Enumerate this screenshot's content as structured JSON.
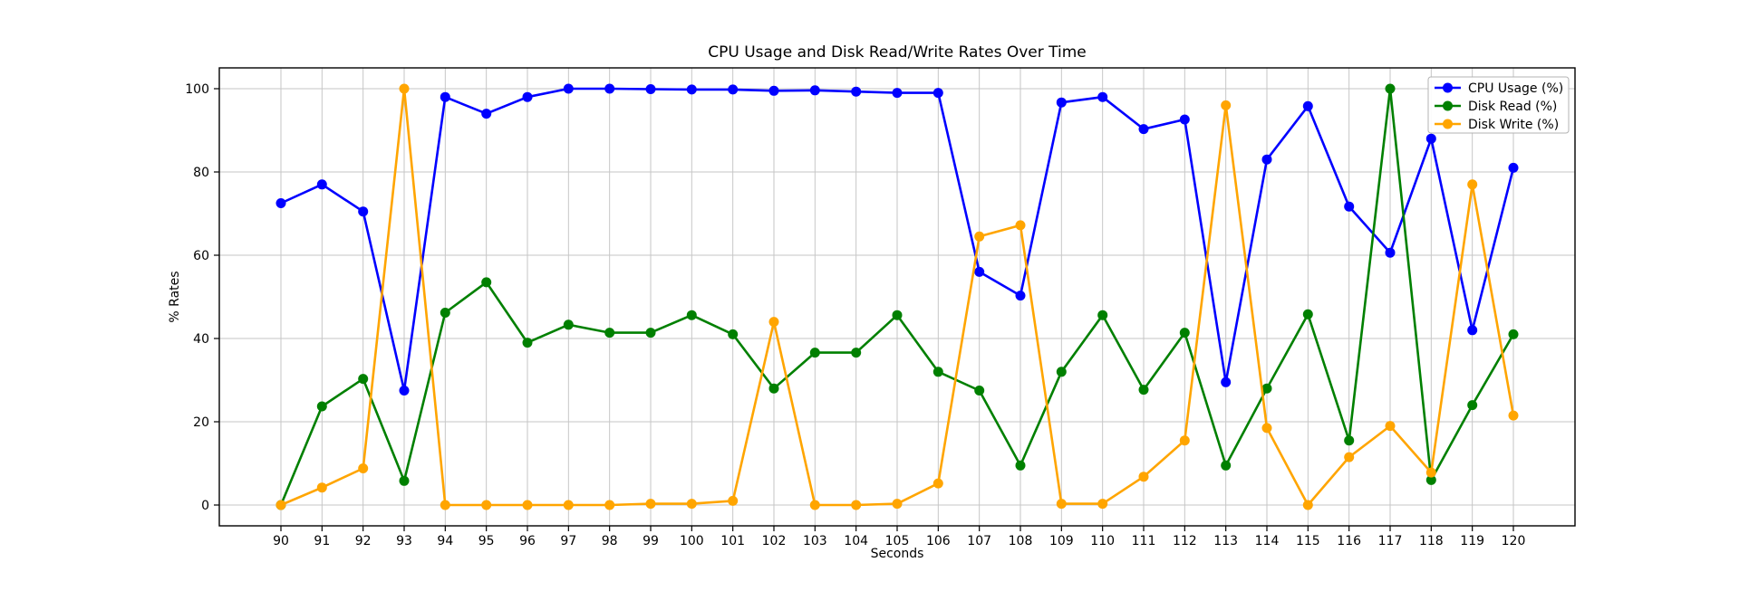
{
  "chart_data": {
    "type": "line",
    "title": "CPU Usage and Disk Read/Write Rates Over Time",
    "xlabel": "Seconds",
    "ylabel": "% Rates",
    "grid": true,
    "grid_color": "#c6c6c6",
    "legend_position": "upper right",
    "xlim": [
      88.5,
      121.5
    ],
    "ylim": [
      -5,
      105
    ],
    "xticks": [
      90,
      91,
      92,
      93,
      94,
      95,
      96,
      97,
      98,
      99,
      100,
      101,
      102,
      103,
      104,
      105,
      106,
      107,
      108,
      109,
      110,
      111,
      112,
      113,
      114,
      115,
      116,
      117,
      118,
      119,
      120
    ],
    "yticks": [
      0,
      20,
      40,
      60,
      80,
      100
    ],
    "x": [
      90,
      91,
      92,
      93,
      94,
      95,
      96,
      97,
      98,
      99,
      100,
      101,
      102,
      103,
      104,
      105,
      106,
      107,
      108,
      109,
      110,
      111,
      112,
      113,
      114,
      115,
      116,
      117,
      118,
      119,
      120
    ],
    "series": [
      {
        "name": "CPU Usage (%)",
        "color": "#0000ff",
        "values": [
          72.5,
          77,
          70.5,
          27.5,
          98,
          94,
          98,
          100,
          100,
          99.9,
          99.8,
          99.8,
          99.5,
          99.6,
          99.3,
          99,
          99,
          56,
          50.3,
          96.7,
          98,
          90.3,
          92.6,
          29.5,
          83,
          95.8,
          71.7,
          60.6,
          88,
          42,
          81
        ]
      },
      {
        "name": "Disk Read (%)",
        "color": "#008000",
        "values": [
          0,
          23.7,
          30.3,
          5.8,
          46.2,
          53.5,
          39,
          43.3,
          41.4,
          41.4,
          45.6,
          41,
          28,
          36.6,
          36.6,
          45.6,
          32,
          27.5,
          9.5,
          32,
          45.6,
          27.7,
          41.4,
          9.5,
          28,
          45.8,
          15.5,
          100,
          6,
          24,
          41
        ]
      },
      {
        "name": "Disk Write (%)",
        "color": "#ffa500",
        "values": [
          0,
          4.2,
          8.8,
          100,
          0,
          0,
          0,
          0,
          0,
          0.3,
          0.3,
          1,
          44,
          0,
          0,
          0.3,
          5.2,
          64.5,
          67.2,
          0.3,
          0.3,
          6.8,
          15.5,
          96,
          18.5,
          0,
          11.5,
          19,
          7.8,
          77,
          21.5
        ]
      }
    ]
  }
}
